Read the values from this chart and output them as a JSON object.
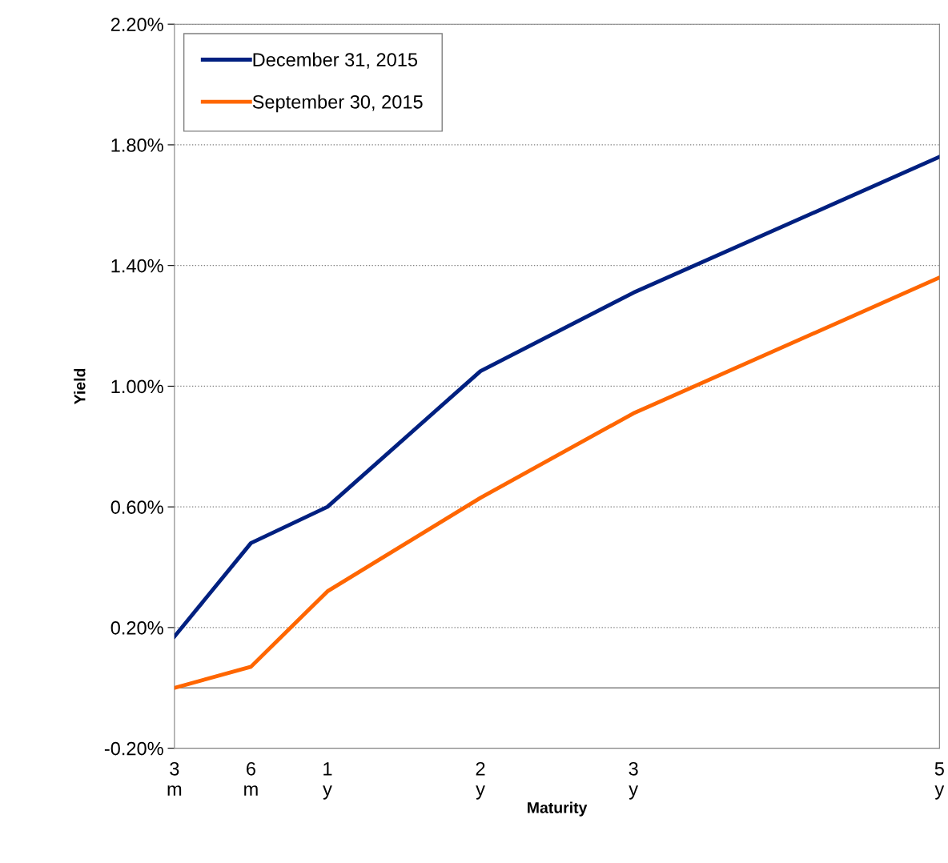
{
  "chart_data": {
    "type": "line",
    "xlabel": "Maturity",
    "ylabel": "Yield",
    "categories": [
      "3\nm",
      "6\nm",
      "1\ny",
      null,
      "2\ny",
      null,
      "3\ny",
      null,
      null,
      null,
      "5\ny"
    ],
    "series": [
      {
        "name": "December 31, 2015",
        "color": "#002080",
        "values": [
          0.17,
          0.48,
          0.6,
          null,
          1.05,
          null,
          1.31,
          null,
          null,
          null,
          1.76
        ]
      },
      {
        "name": "September 30, 2015",
        "color": "#ff6600",
        "values": [
          0.0,
          0.07,
          0.32,
          null,
          0.63,
          null,
          0.91,
          null,
          null,
          null,
          1.36
        ]
      }
    ],
    "ylim": [
      -0.2,
      2.2
    ],
    "yticks": [
      {
        "value": -0.2,
        "label": "-0.20%"
      },
      {
        "value": 0.2,
        "label": "0.20%"
      },
      {
        "value": 0.6,
        "label": "0.60%"
      },
      {
        "value": 1.0,
        "label": "1.00%"
      },
      {
        "value": 1.4,
        "label": "1.40%"
      },
      {
        "value": 1.8,
        "label": "1.80%"
      },
      {
        "value": 2.2,
        "label": "2.20%"
      }
    ],
    "ref_lines": [
      {
        "axis": "y",
        "value": 0,
        "color": "#808080"
      }
    ],
    "grid": "y",
    "legend": "top left",
    "line_style": "solid",
    "marker": "none"
  }
}
